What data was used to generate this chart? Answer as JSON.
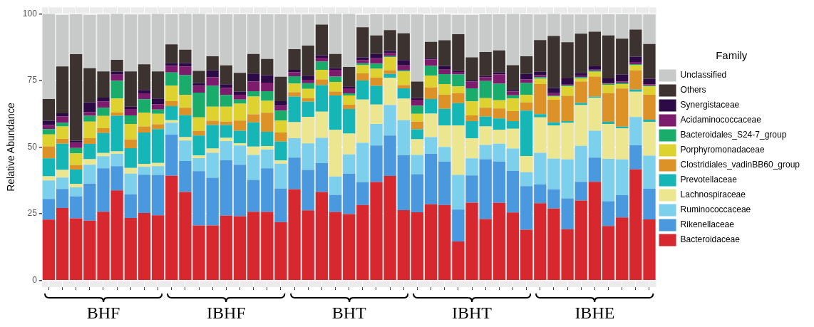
{
  "chart_data": {
    "type": "bar",
    "stacked": true,
    "ylabel": "Relative Abundance",
    "legend_title": "Family",
    "legend": "right",
    "grid": true,
    "tick_labels": "y",
    "ylim": [
      -2.5,
      102.5
    ],
    "yticks": [
      0,
      25,
      50,
      75,
      100
    ],
    "annotations": [
      "BHF",
      "IBHF",
      "BHT",
      "IBHT",
      "IBHE"
    ],
    "categories": [
      null,
      null,
      null,
      null,
      null,
      null,
      null,
      null,
      null,
      null,
      null,
      null,
      null,
      null,
      null,
      null,
      null,
      null,
      null,
      null,
      null,
      null,
      null,
      null,
      null,
      null,
      null,
      null,
      null,
      null,
      null,
      null,
      null,
      null,
      null,
      null,
      null,
      null,
      null,
      null,
      null,
      null,
      null,
      null,
      null
    ],
    "series": [
      {
        "name": "Bacteroidaceae",
        "color": "#d8282f",
        "values": [
          22.8,
          27.2,
          23.3,
          22.4,
          25.8,
          33.8,
          23.4,
          25.3,
          24.4,
          39.3,
          33.2,
          20.6,
          20.6,
          24.3,
          24.1,
          25.8,
          25.7,
          21.9,
          34.2,
          26.3,
          33.2,
          25.7,
          24.9,
          28.3,
          36.9,
          39.2,
          26.4,
          25.6,
          28.6,
          28.3,
          14.6,
          29.2,
          23.0,
          29.1,
          25.5,
          19.0,
          29.0,
          27.0,
          19.2,
          30.0,
          37.0,
          20.4,
          23.6,
          41.7,
          22.9
        ]
      },
      {
        "name": "Rikenellaceae",
        "color": "#4a99de",
        "values": [
          7.8,
          7.1,
          8.3,
          13.9,
          16.3,
          9.1,
          8.9,
          14.4,
          15.2,
          15.4,
          11.6,
          20.4,
          17.9,
          20.8,
          19.3,
          11.9,
          16.4,
          12.6,
          11.9,
          15.2,
          10.9,
          6.4,
          15.2,
          8.6,
          13.7,
          15.2,
          20.6,
          14.3,
          18.9,
          16.3,
          12.0,
          10.2,
          22.5,
          15.5,
          15.6,
          16.4,
          7.0,
          7.2,
          11.6,
          7.0,
          9.1,
          9.3,
          8.4,
          9.0,
          11.5
        ]
      },
      {
        "name": "Ruminococcaceae",
        "color": "#7dd0ec",
        "values": [
          6.9,
          4.3,
          3.3,
          7.1,
          4.5,
          4.6,
          7.8,
          2.9,
          3.3,
          4.5,
          7.7,
          4.9,
          9.4,
          7.2,
          7.2,
          9.4,
          7.0,
          9.3,
          7.3,
          9.9,
          9.4,
          6.9,
          7.2,
          14.7,
          8.1,
          11.4,
          13.1,
          7.2,
          6.3,
          5.5,
          13.0,
          6.4,
          5.3,
          6.7,
          8.4,
          5.2,
          11.9,
          11.5,
          14.6,
          13.5,
          10.1,
          15.9,
          13.4,
          10.6,
          12.4
        ]
      },
      {
        "name": "Lachnospiraceae",
        "color": "#ede690",
        "values": [
          1.6,
          2.9,
          1.3,
          2.1,
          1.2,
          0.9,
          2.1,
          1.1,
          1.2,
          0.9,
          1.3,
          1.0,
          1.6,
          1.2,
          0.9,
          3.1,
          1.3,
          1.2,
          6.0,
          9.9,
          9.8,
          17.5,
          7.8,
          16.3,
          7.3,
          10.2,
          8.1,
          5.9,
          8.8,
          8.1,
          18.6,
          7.6,
          7.0,
          5.2,
          7.4,
          6.1,
          13.3,
          12.5,
          13.7,
          15.3,
          12.4,
          13.1,
          11.7,
          9.5,
          12.7
        ]
      },
      {
        "name": "Prevotellaceae",
        "color": "#17b6b6",
        "values": [
          6.7,
          9.8,
          5.4,
          5.7,
          7.5,
          13.4,
          7.4,
          11.8,
          12.7,
          5.3,
          8.2,
          7.5,
          8.8,
          4.8,
          4.7,
          9.1,
          5.4,
          7.1,
          9.6,
          5.8,
          10.0,
          12.9,
          9.2,
          7.1,
          7.0,
          1.5,
          3.9,
          3.7,
          5.5,
          6.2,
          8.3,
          6.4,
          3.7,
          4.3,
          2.9,
          17.0,
          1.2,
          1.1,
          0.7,
          0.8,
          0.4,
          0.8,
          0.6,
          0.8,
          0.8
        ]
      },
      {
        "name": "Clostridiales_vadinBB60_group",
        "color": "#dc9226",
        "values": [
          4.5,
          1.8,
          1.7,
          2.2,
          1.8,
          1.2,
          3.3,
          2.3,
          1.8,
          1.9,
          2.8,
          1.7,
          1.6,
          1.3,
          3.8,
          3.0,
          7.1,
          3.4,
          1.6,
          1.3,
          2.1,
          1.5,
          1.6,
          2.7,
          3.1,
          1.3,
          1.2,
          2.9,
          4.3,
          5.3,
          3.8,
          2.1,
          3.3,
          3.7,
          3.7,
          3.1,
          11.3,
          8.5,
          9.5,
          8.0,
          7.5,
          10.8,
          14.3,
          7.2,
          9.4
        ]
      },
      {
        "name": "Porphyromonadaceae",
        "color": "#ddd22f",
        "values": [
          4.5,
          4.7,
          4.4,
          6.2,
          4.6,
          5.3,
          5.8,
          5.1,
          3.9,
          5.8,
          4.8,
          5.1,
          5.3,
          5.6,
          6.3,
          6.7,
          4.5,
          4.5,
          3.3,
          3.5,
          3.6,
          3.6,
          3.5,
          3.1,
          3.3,
          5.0,
          5.1,
          2.9,
          4.4,
          4.0,
          2.5,
          5.3,
          3.6,
          3.1,
          4.8,
          2.8,
          2.0,
          1.2,
          3.5,
          1.2,
          1.8,
          3.1,
          1.7,
          2.0,
          3.1
        ]
      },
      {
        "name": "Bacteroidales_S24-7_group",
        "color": "#1aac6b",
        "values": [
          2.0,
          1.4,
          2.0,
          2.2,
          3.1,
          6.6,
          3.2,
          5.1,
          1.6,
          4.9,
          7.4,
          9.3,
          7.8,
          4.4,
          1.6,
          2.0,
          3.6,
          3.7,
          2.7,
          2.1,
          3.1,
          2.0,
          0.8,
          0.7,
          2.0,
          0.4,
          0.4,
          3.0,
          3.7,
          3.7,
          4.5,
          4.9,
          6.4,
          6.2,
          1.2,
          4.5,
          0.5,
          0.3,
          0.4,
          0.4,
          0.4,
          0.4,
          0.4,
          0.4,
          0.3
        ]
      },
      {
        "name": "Acidaminococcaceae",
        "color": "#7d1c6c",
        "values": [
          1.5,
          2.3,
          2.0,
          1.4,
          2.4,
          2.3,
          2.4,
          2.2,
          2.0,
          2.6,
          3.3,
          2.5,
          3.2,
          2.7,
          1.8,
          3.7,
          3.2,
          1.9,
          1.5,
          1.3,
          1.5,
          2.5,
          1.9,
          1.2,
          2.0,
          1.2,
          1.9,
          2.3,
          2.4,
          1.7,
          0.9,
          2.5,
          1.5,
          3.5,
          1.4,
          1.3,
          0.8,
          1.0,
          0.5,
          0.5,
          0.4,
          0.4,
          0.6,
          0.8,
          0.5
        ]
      },
      {
        "name": "Synergistaceae",
        "color": "#2c0a46",
        "values": [
          1.6,
          1.2,
          0.7,
          3.7,
          1.4,
          1.1,
          0.9,
          1.3,
          2.2,
          0.9,
          1.3,
          1.1,
          2.6,
          1.3,
          1.2,
          2.9,
          2.8,
          1.7,
          0.9,
          1.5,
          0.9,
          0.7,
          0.7,
          1.0,
          1.6,
          0.7,
          2.0,
          0.7,
          0.5,
          1.4,
          0.5,
          0.4,
          0.4,
          0.7,
          0.6,
          2.1,
          1.3,
          1.9,
          2.1,
          1.2,
          1.3,
          1.6,
          2.5,
          2.0,
          2.1
        ]
      },
      {
        "name": "Others",
        "color": "#3c3331",
        "values": [
          8.2,
          17.6,
          32.5,
          12.7,
          9.8,
          4.5,
          13.2,
          9.6,
          10.1,
          7.1,
          5.0,
          4.5,
          5.3,
          7.1,
          7.0,
          7.4,
          6.1,
          9.1,
          7.8,
          11.3,
          11.5,
          5.3,
          7.3,
          11.3,
          6.9,
          7.8,
          10.0,
          6.1,
          6.1,
          9.6,
          13.7,
          8.7,
          9.0,
          8.3,
          9.3,
          6.6,
          11.9,
          19.5,
          13.6,
          14.7,
          12.9,
          16.1,
          13.5,
          10.1,
          13.0
        ]
      },
      {
        "name": "Unclassified",
        "color": "#c8c9c9",
        "values": [
          31.9,
          19.4,
          15.0,
          20.1,
          21.4,
          17.2,
          21.4,
          18.7,
          21.6,
          11.3,
          13.4,
          21.4,
          15.7,
          19.2,
          22.0,
          14.9,
          16.8,
          23.5,
          13.0,
          11.7,
          3.9,
          15.0,
          19.9,
          4.7,
          8.0,
          5.9,
          7.2,
          25.2,
          10.2,
          9.7,
          7.3,
          16.0,
          14.2,
          13.6,
          19.2,
          15.8,
          9.6,
          8.3,
          10.4,
          7.2,
          6.5,
          8.0,
          9.2,
          5.7,
          11.1
        ]
      }
    ]
  }
}
